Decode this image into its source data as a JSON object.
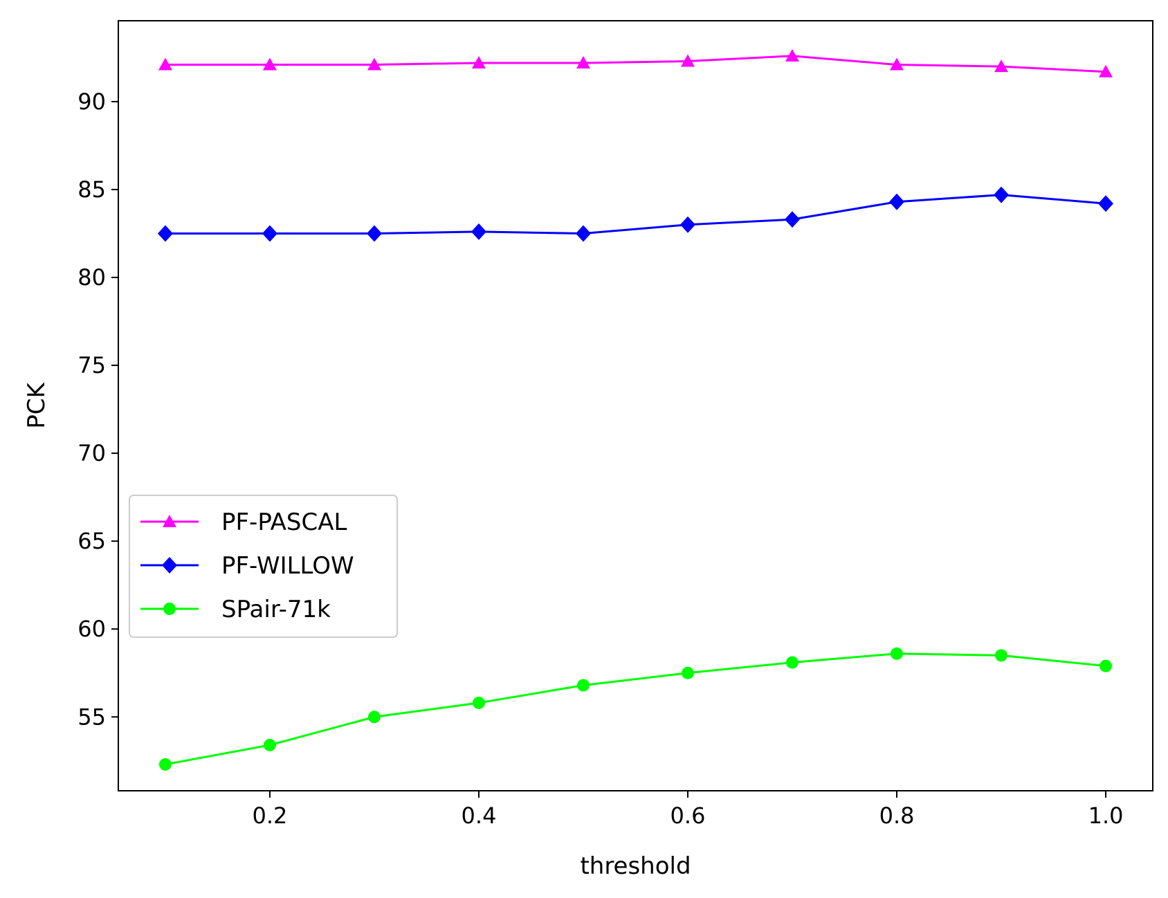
{
  "chart_data": {
    "type": "line",
    "title": "",
    "xlabel": "threshold",
    "ylabel": "PCK",
    "x": [
      0.1,
      0.2,
      0.3,
      0.4,
      0.5,
      0.6,
      0.7,
      0.8,
      0.9,
      1.0
    ],
    "xlim": [
      0.055,
      1.045
    ],
    "ylim": [
      50.8,
      94.6
    ],
    "xticks": [
      0.2,
      0.4,
      0.6,
      0.8,
      1.0
    ],
    "xtick_labels": [
      "0.2",
      "0.4",
      "0.6",
      "0.8",
      "1.0"
    ],
    "yticks": [
      55,
      60,
      65,
      70,
      75,
      80,
      85,
      90
    ],
    "ytick_labels": [
      "55",
      "60",
      "65",
      "70",
      "75",
      "80",
      "85",
      "90"
    ],
    "grid": false,
    "legend_position": "center-left",
    "series": [
      {
        "name": "PF-PASCAL",
        "color": "#ff00ff",
        "marker": "triangle",
        "values": [
          92.1,
          92.1,
          92.1,
          92.2,
          92.2,
          92.3,
          92.6,
          92.1,
          92.0,
          91.7
        ]
      },
      {
        "name": "PF-WILLOW",
        "color": "#0000ff",
        "marker": "diamond",
        "values": [
          82.5,
          82.5,
          82.5,
          82.6,
          82.5,
          83.0,
          83.3,
          84.3,
          84.7,
          84.2
        ]
      },
      {
        "name": "SPair-71k",
        "color": "#00ff00",
        "marker": "circle",
        "values": [
          52.3,
          53.4,
          55.0,
          55.8,
          56.8,
          57.5,
          58.1,
          58.6,
          58.5,
          57.9
        ]
      }
    ]
  }
}
